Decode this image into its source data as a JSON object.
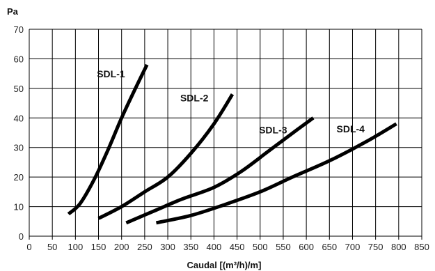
{
  "chart_data": {
    "type": "line",
    "title": "",
    "ylabel": "Pa",
    "xlabel": "Caudal [(m³/h)/m]",
    "xlim": [
      0,
      850
    ],
    "ylim": [
      0,
      70
    ],
    "xticks": [
      "0",
      "50",
      "100",
      "150",
      "200",
      "250",
      "300",
      "350",
      "400",
      "450",
      "500",
      "550",
      "600",
      "650",
      "700",
      "750",
      "800",
      "850"
    ],
    "yticks": [
      "0",
      "10",
      "20",
      "30",
      "40",
      "50",
      "60",
      "70"
    ],
    "grid": true,
    "legend": "none",
    "series": [
      {
        "name": "SDL-1",
        "x": [
          85,
          110,
          140,
          170,
          200,
          230,
          255
        ],
        "y": [
          7.5,
          11,
          19,
          29,
          40,
          50,
          58
        ]
      },
      {
        "name": "SDL-2",
        "x": [
          150,
          200,
          250,
          300,
          350,
          400,
          440
        ],
        "y": [
          6,
          10,
          15,
          20,
          28,
          38,
          48
        ]
      },
      {
        "name": "SDL-3",
        "x": [
          210,
          270,
          330,
          400,
          460,
          520,
          580,
          615
        ],
        "y": [
          4.5,
          8.5,
          12.5,
          16.5,
          22,
          29,
          36,
          40
        ]
      },
      {
        "name": "SDL-4",
        "x": [
          275,
          350,
          420,
          500,
          570,
          650,
          730,
          795
        ],
        "y": [
          4.5,
          7,
          10.5,
          15,
          20,
          25.5,
          32,
          38
        ]
      }
    ]
  }
}
